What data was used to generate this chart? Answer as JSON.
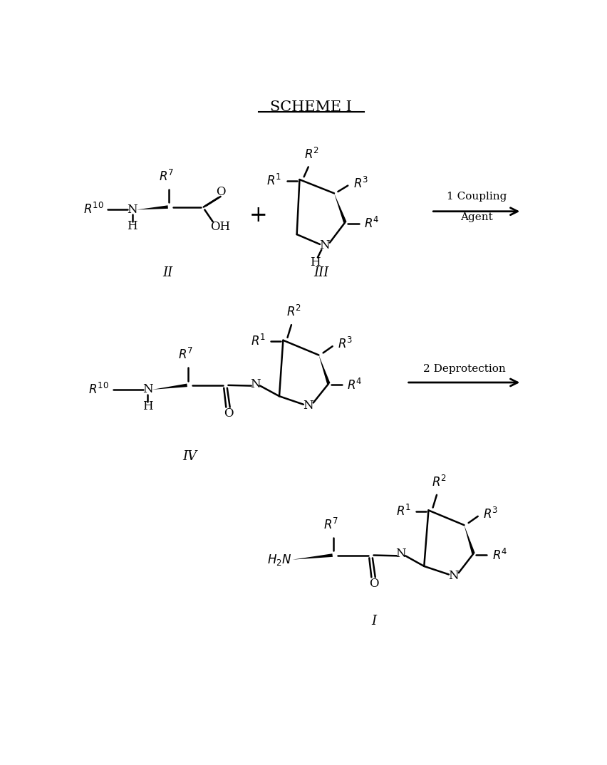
{
  "title": "SCHEME I",
  "background": "#ffffff",
  "figsize": [
    8.52,
    10.74
  ],
  "dpi": 100,
  "label_II": "II",
  "label_III": "III",
  "label_IV": "IV",
  "label_I": "I",
  "step1_line1": "1 Coupling",
  "step1_line2": "Agent",
  "step2_label": "2 Deprotection"
}
